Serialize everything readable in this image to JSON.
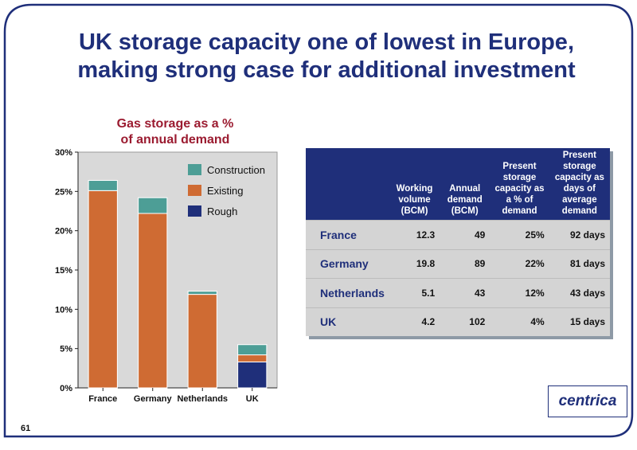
{
  "title_line1": "UK storage capacity one of lowest in Europe,",
  "title_line2": "making strong case for additional investment",
  "page_number": "61",
  "logo_text": "centrica",
  "colors": {
    "navy": "#1f2f7a",
    "construction": "#4d9e96",
    "existing": "#cf6b33",
    "rough": "#1f2f7a",
    "plot_bg": "#d9d9d9",
    "chart_title": "#9b1b30"
  },
  "chart_data": {
    "type": "bar",
    "title_line1": "Gas storage as a %",
    "title_line2": "of annual demand",
    "categories": [
      "France",
      "Germany",
      "Netherlands",
      "UK"
    ],
    "series": [
      {
        "name": "Rough",
        "values": [
          0,
          0,
          0,
          3.3
        ]
      },
      {
        "name": "Existing",
        "values": [
          25.1,
          22.2,
          11.9,
          0.9
        ]
      },
      {
        "name": "Construction",
        "values": [
          1.3,
          2.0,
          0.4,
          1.3
        ]
      }
    ],
    "ylim": [
      0,
      30
    ],
    "yticks": [
      "0%",
      "5%",
      "10%",
      "15%",
      "20%",
      "25%",
      "30%"
    ],
    "legend_position": "top-right",
    "legend": [
      "Construction",
      "Existing",
      "Rough"
    ],
    "grid": false
  },
  "table": {
    "headers": [
      "",
      "Working volume (BCM)",
      "Annual demand (BCM)",
      "Present storage capacity as a % of demand",
      "Present storage capacity as days of average demand"
    ],
    "rows": [
      [
        "France",
        "12.3",
        "49",
        "25%",
        "92 days"
      ],
      [
        "Germany",
        "19.8",
        "89",
        "22%",
        "81 days"
      ],
      [
        "Netherlands",
        "5.1",
        "43",
        "12%",
        "43 days"
      ],
      [
        "UK",
        "4.2",
        "102",
        "4%",
        "15 days"
      ]
    ]
  }
}
